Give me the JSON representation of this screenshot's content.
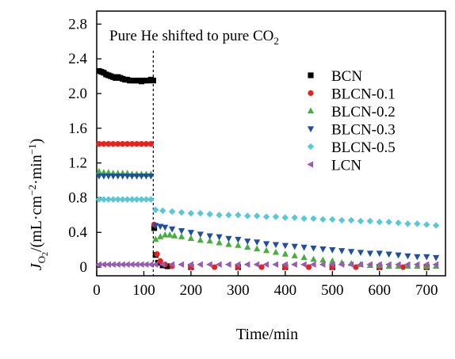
{
  "chart_data": {
    "type": "scatter",
    "annotation": "Pure He shifted to pure CO",
    "annotation_sub": "2",
    "xlabel": "Time/min",
    "ylabel": {
      "main": "J",
      "main_sub": "O",
      "main_sub_sub": "2",
      "unit_open": "/(mL·cm",
      "unit_exp1": "−2",
      "unit_mid": "·min",
      "unit_exp2": "−1",
      "unit_close": ")"
    },
    "xlim": [
      0,
      740
    ],
    "ylim": [
      -0.1,
      2.95
    ],
    "xticks": [
      0,
      100,
      200,
      300,
      400,
      500,
      600,
      700
    ],
    "yticks": [
      0,
      0.4,
      0.8,
      1.2,
      1.6,
      2.0,
      2.4,
      2.8
    ],
    "ytick_labels": [
      "0",
      "0.4",
      "0.8",
      "1.2",
      "1.6",
      "2.0",
      "2.4",
      "2.8"
    ],
    "switch_time": 120,
    "legend_position": "right",
    "series": [
      {
        "name": "BCN",
        "marker": "square",
        "color": "#000000",
        "x": [
          5,
          10,
          15,
          20,
          25,
          30,
          35,
          40,
          45,
          50,
          55,
          60,
          65,
          70,
          75,
          80,
          85,
          90,
          95,
          100,
          105,
          110,
          115,
          120,
          122,
          125,
          130,
          140,
          150,
          200,
          300,
          400,
          500,
          600,
          700
        ],
        "y": [
          2.26,
          2.25,
          2.24,
          2.22,
          2.21,
          2.2,
          2.19,
          2.18,
          2.19,
          2.18,
          2.17,
          2.16,
          2.16,
          2.15,
          2.15,
          2.15,
          2.15,
          2.15,
          2.14,
          2.15,
          2.15,
          2.15,
          2.16,
          2.15,
          0.45,
          0.14,
          0.05,
          0.02,
          0.01,
          0.0,
          0.0,
          0.0,
          0.0,
          0.0,
          0.0
        ]
      },
      {
        "name": "BLCN-0.1",
        "marker": "circle",
        "color": "#e8211d",
        "x": [
          5,
          15,
          25,
          35,
          45,
          55,
          65,
          75,
          85,
          95,
          105,
          115,
          122,
          128,
          135,
          145,
          160,
          200,
          250,
          300,
          350,
          400,
          450,
          500,
          550,
          600,
          650,
          700
        ],
        "y": [
          1.42,
          1.42,
          1.42,
          1.42,
          1.42,
          1.42,
          1.42,
          1.42,
          1.42,
          1.42,
          1.42,
          1.42,
          0.49,
          0.15,
          0.07,
          0.03,
          0.01,
          0.0,
          0.0,
          0.0,
          0.0,
          0.0,
          0.0,
          0.0,
          0.0,
          0.0,
          0.0,
          0.0
        ]
      },
      {
        "name": "BLCN-0.2",
        "marker": "triangle-up",
        "color": "#44b03a",
        "x": [
          5,
          15,
          25,
          35,
          45,
          55,
          65,
          75,
          85,
          95,
          105,
          115,
          125,
          135,
          145,
          155,
          165,
          180,
          200,
          220,
          240,
          260,
          280,
          300,
          320,
          340,
          360,
          380,
          400,
          420,
          440,
          460,
          480,
          500,
          520,
          540,
          560,
          580,
          600,
          620,
          640,
          660,
          680,
          700,
          720
        ],
        "y": [
          1.1,
          1.09,
          1.09,
          1.08,
          1.08,
          1.08,
          1.08,
          1.07,
          1.07,
          1.07,
          1.07,
          1.07,
          0.32,
          0.35,
          0.37,
          0.37,
          0.36,
          0.35,
          0.33,
          0.31,
          0.3,
          0.28,
          0.26,
          0.25,
          0.23,
          0.21,
          0.19,
          0.17,
          0.15,
          0.13,
          0.11,
          0.09,
          0.08,
          0.07,
          0.05,
          0.04,
          0.03,
          0.02,
          0.02,
          0.01,
          0.01,
          0.01,
          0.01,
          0.01,
          0.01
        ]
      },
      {
        "name": "BLCN-0.3",
        "marker": "triangle-down",
        "color": "#1f4fa3",
        "x": [
          5,
          15,
          25,
          35,
          45,
          55,
          65,
          75,
          85,
          95,
          105,
          115,
          125,
          135,
          145,
          160,
          180,
          200,
          220,
          240,
          260,
          280,
          300,
          320,
          340,
          360,
          380,
          400,
          420,
          440,
          460,
          480,
          500,
          520,
          540,
          560,
          580,
          600,
          620,
          640,
          660,
          680,
          700,
          720
        ],
        "y": [
          1.05,
          1.05,
          1.05,
          1.05,
          1.05,
          1.05,
          1.05,
          1.05,
          1.05,
          1.05,
          1.05,
          1.05,
          0.48,
          0.47,
          0.46,
          0.44,
          0.42,
          0.4,
          0.38,
          0.36,
          0.35,
          0.33,
          0.32,
          0.3,
          0.29,
          0.27,
          0.26,
          0.25,
          0.24,
          0.23,
          0.22,
          0.21,
          0.2,
          0.19,
          0.18,
          0.17,
          0.16,
          0.16,
          0.15,
          0.14,
          0.13,
          0.12,
          0.12,
          0.11
        ]
      },
      {
        "name": "BLCN-0.5",
        "marker": "diamond",
        "color": "#56c9d8",
        "x": [
          5,
          15,
          25,
          35,
          45,
          55,
          65,
          75,
          85,
          95,
          105,
          115,
          125,
          140,
          160,
          180,
          200,
          220,
          240,
          260,
          280,
          300,
          320,
          340,
          360,
          380,
          400,
          420,
          440,
          460,
          480,
          500,
          520,
          540,
          560,
          580,
          600,
          620,
          640,
          660,
          680,
          700,
          720
        ],
        "y": [
          0.78,
          0.78,
          0.78,
          0.78,
          0.78,
          0.78,
          0.78,
          0.78,
          0.78,
          0.78,
          0.78,
          0.78,
          0.66,
          0.65,
          0.64,
          0.63,
          0.62,
          0.62,
          0.61,
          0.6,
          0.6,
          0.6,
          0.59,
          0.59,
          0.58,
          0.58,
          0.57,
          0.57,
          0.56,
          0.56,
          0.55,
          0.55,
          0.54,
          0.54,
          0.53,
          0.53,
          0.52,
          0.52,
          0.51,
          0.5,
          0.5,
          0.49,
          0.48
        ]
      },
      {
        "name": "LCN",
        "marker": "triangle-left",
        "color": "#9b59b6",
        "x": [
          5,
          15,
          25,
          35,
          45,
          55,
          65,
          75,
          85,
          95,
          105,
          115,
          125,
          140,
          160,
          180,
          200,
          220,
          240,
          260,
          280,
          300,
          320,
          340,
          360,
          380,
          400,
          420,
          440,
          460,
          480,
          500,
          520,
          540,
          560,
          580,
          600,
          620,
          640,
          660,
          680,
          700,
          720
        ],
        "y": [
          0.03,
          0.03,
          0.03,
          0.03,
          0.03,
          0.03,
          0.03,
          0.03,
          0.03,
          0.03,
          0.03,
          0.03,
          0.03,
          0.03,
          0.03,
          0.03,
          0.03,
          0.03,
          0.03,
          0.03,
          0.03,
          0.03,
          0.03,
          0.03,
          0.03,
          0.03,
          0.03,
          0.03,
          0.03,
          0.03,
          0.03,
          0.03,
          0.03,
          0.03,
          0.03,
          0.03,
          0.03,
          0.03,
          0.03,
          0.03,
          0.03,
          0.03,
          0.03
        ]
      }
    ]
  }
}
